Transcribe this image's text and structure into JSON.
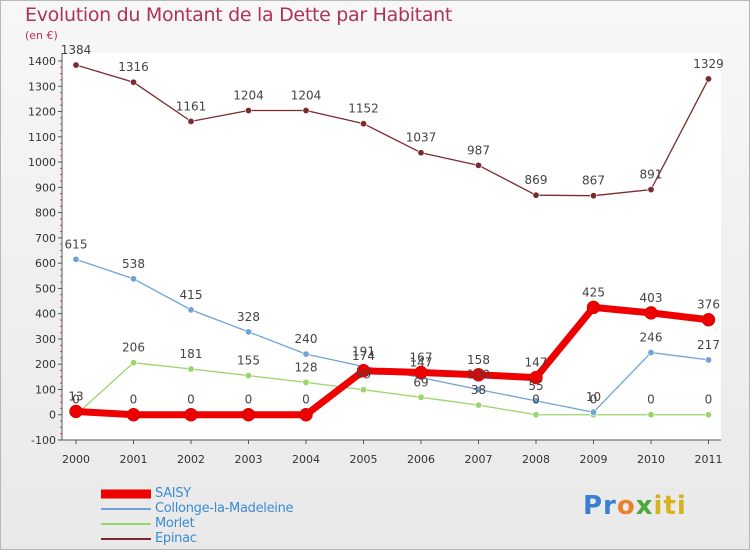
{
  "page": {
    "title": "Evolution du Montant de la Dette par Habitant",
    "subtitle": "(en €)"
  },
  "logo": {
    "text": "Proxiti",
    "parts": [
      "Pr",
      "o",
      "x",
      "iti"
    ]
  },
  "chart_data": {
    "type": "line",
    "title": "Evolution du Montant de la Dette par Habitant",
    "subtitle": "(en €)",
    "xlabel": "",
    "ylabel": "",
    "categories": [
      "2000",
      "2001",
      "2002",
      "2003",
      "2004",
      "2005",
      "2006",
      "2007",
      "2008",
      "2009",
      "2010",
      "2011"
    ],
    "ylim": [
      -100,
      1400
    ],
    "yticks": [
      -100,
      0,
      100,
      200,
      300,
      400,
      500,
      600,
      700,
      800,
      900,
      1000,
      1100,
      1200,
      1300,
      1400
    ],
    "grid": false,
    "legend_position": "bottom-left",
    "series": [
      {
        "name": "SAISY",
        "color": "#ee0000",
        "values": [
          13,
          0,
          0,
          0,
          0,
          174,
          167,
          158,
          147,
          425,
          403,
          376
        ]
      },
      {
        "name": "Collonge-la-Madeleine",
        "color": "#6fa4d8",
        "values": [
          615,
          538,
          415,
          328,
          240,
          191,
          147,
          100,
          55,
          10,
          246,
          217
        ]
      },
      {
        "name": "Morlet",
        "color": "#9ad56c",
        "values": [
          0,
          206,
          181,
          155,
          128,
          99,
          69,
          38,
          0,
          0,
          0,
          0
        ]
      },
      {
        "name": "Epinac",
        "color": "#7a2c2c",
        "values": [
          1384,
          1316,
          1161,
          1204,
          1204,
          1152,
          1037,
          987,
          869,
          867,
          891,
          1329
        ]
      }
    ]
  }
}
